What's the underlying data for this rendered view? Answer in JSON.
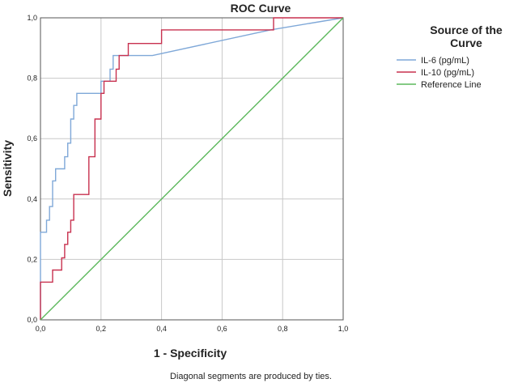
{
  "chart_data": {
    "type": "line",
    "title": "ROC Curve",
    "xlabel": "1 - Specificity",
    "ylabel": "Sensitivity",
    "xlim": [
      0,
      1
    ],
    "ylim": [
      0,
      1
    ],
    "xticks": [
      "0,0",
      "0,2",
      "0,4",
      "0,6",
      "0,8",
      "1,0"
    ],
    "yticks": [
      "0,0",
      "0,2",
      "0,4",
      "0,6",
      "0,8",
      "1,0"
    ],
    "grid": true,
    "legend": {
      "title_line1": "Source of the",
      "title_line2": "Curve",
      "placement": "right"
    },
    "footnote": "Diagonal segments are produced by ties.",
    "series": [
      {
        "name": "IL-6 (pg/mL)",
        "color": "#7fa8d8",
        "points": [
          [
            0,
            0
          ],
          [
            0,
            0.29
          ],
          [
            0.02,
            0.29
          ],
          [
            0.02,
            0.33
          ],
          [
            0.03,
            0.33
          ],
          [
            0.03,
            0.375
          ],
          [
            0.04,
            0.375
          ],
          [
            0.04,
            0.46
          ],
          [
            0.05,
            0.46
          ],
          [
            0.05,
            0.5
          ],
          [
            0.08,
            0.5
          ],
          [
            0.08,
            0.54
          ],
          [
            0.09,
            0.54
          ],
          [
            0.09,
            0.585
          ],
          [
            0.1,
            0.585
          ],
          [
            0.1,
            0.665
          ],
          [
            0.11,
            0.665
          ],
          [
            0.11,
            0.71
          ],
          [
            0.12,
            0.71
          ],
          [
            0.12,
            0.75
          ],
          [
            0.2,
            0.75
          ],
          [
            0.2,
            0.79
          ],
          [
            0.23,
            0.79
          ],
          [
            0.23,
            0.83
          ],
          [
            0.24,
            0.83
          ],
          [
            0.24,
            0.875
          ],
          [
            0.37,
            0.875
          ],
          [
            0.76,
            0.96
          ],
          [
            1,
            1
          ]
        ]
      },
      {
        "name": "IL-10 (pg/mL)",
        "color": "#c8314f",
        "points": [
          [
            0,
            0
          ],
          [
            0,
            0.125
          ],
          [
            0.04,
            0.125
          ],
          [
            0.04,
            0.165
          ],
          [
            0.07,
            0.165
          ],
          [
            0.07,
            0.205
          ],
          [
            0.08,
            0.205
          ],
          [
            0.08,
            0.25
          ],
          [
            0.09,
            0.25
          ],
          [
            0.09,
            0.29
          ],
          [
            0.1,
            0.29
          ],
          [
            0.1,
            0.33
          ],
          [
            0.11,
            0.33
          ],
          [
            0.11,
            0.415
          ],
          [
            0.16,
            0.415
          ],
          [
            0.16,
            0.54
          ],
          [
            0.18,
            0.54
          ],
          [
            0.18,
            0.665
          ],
          [
            0.2,
            0.665
          ],
          [
            0.2,
            0.75
          ],
          [
            0.21,
            0.75
          ],
          [
            0.21,
            0.79
          ],
          [
            0.25,
            0.79
          ],
          [
            0.25,
            0.83
          ],
          [
            0.26,
            0.83
          ],
          [
            0.26,
            0.875
          ],
          [
            0.29,
            0.875
          ],
          [
            0.29,
            0.915
          ],
          [
            0.4,
            0.915
          ],
          [
            0.4,
            0.96
          ],
          [
            0.77,
            0.96
          ],
          [
            0.77,
            1
          ],
          [
            1,
            1
          ]
        ]
      },
      {
        "name": "Reference Line",
        "color": "#5cb85c",
        "points": [
          [
            0,
            0
          ],
          [
            1,
            1
          ]
        ]
      }
    ]
  }
}
